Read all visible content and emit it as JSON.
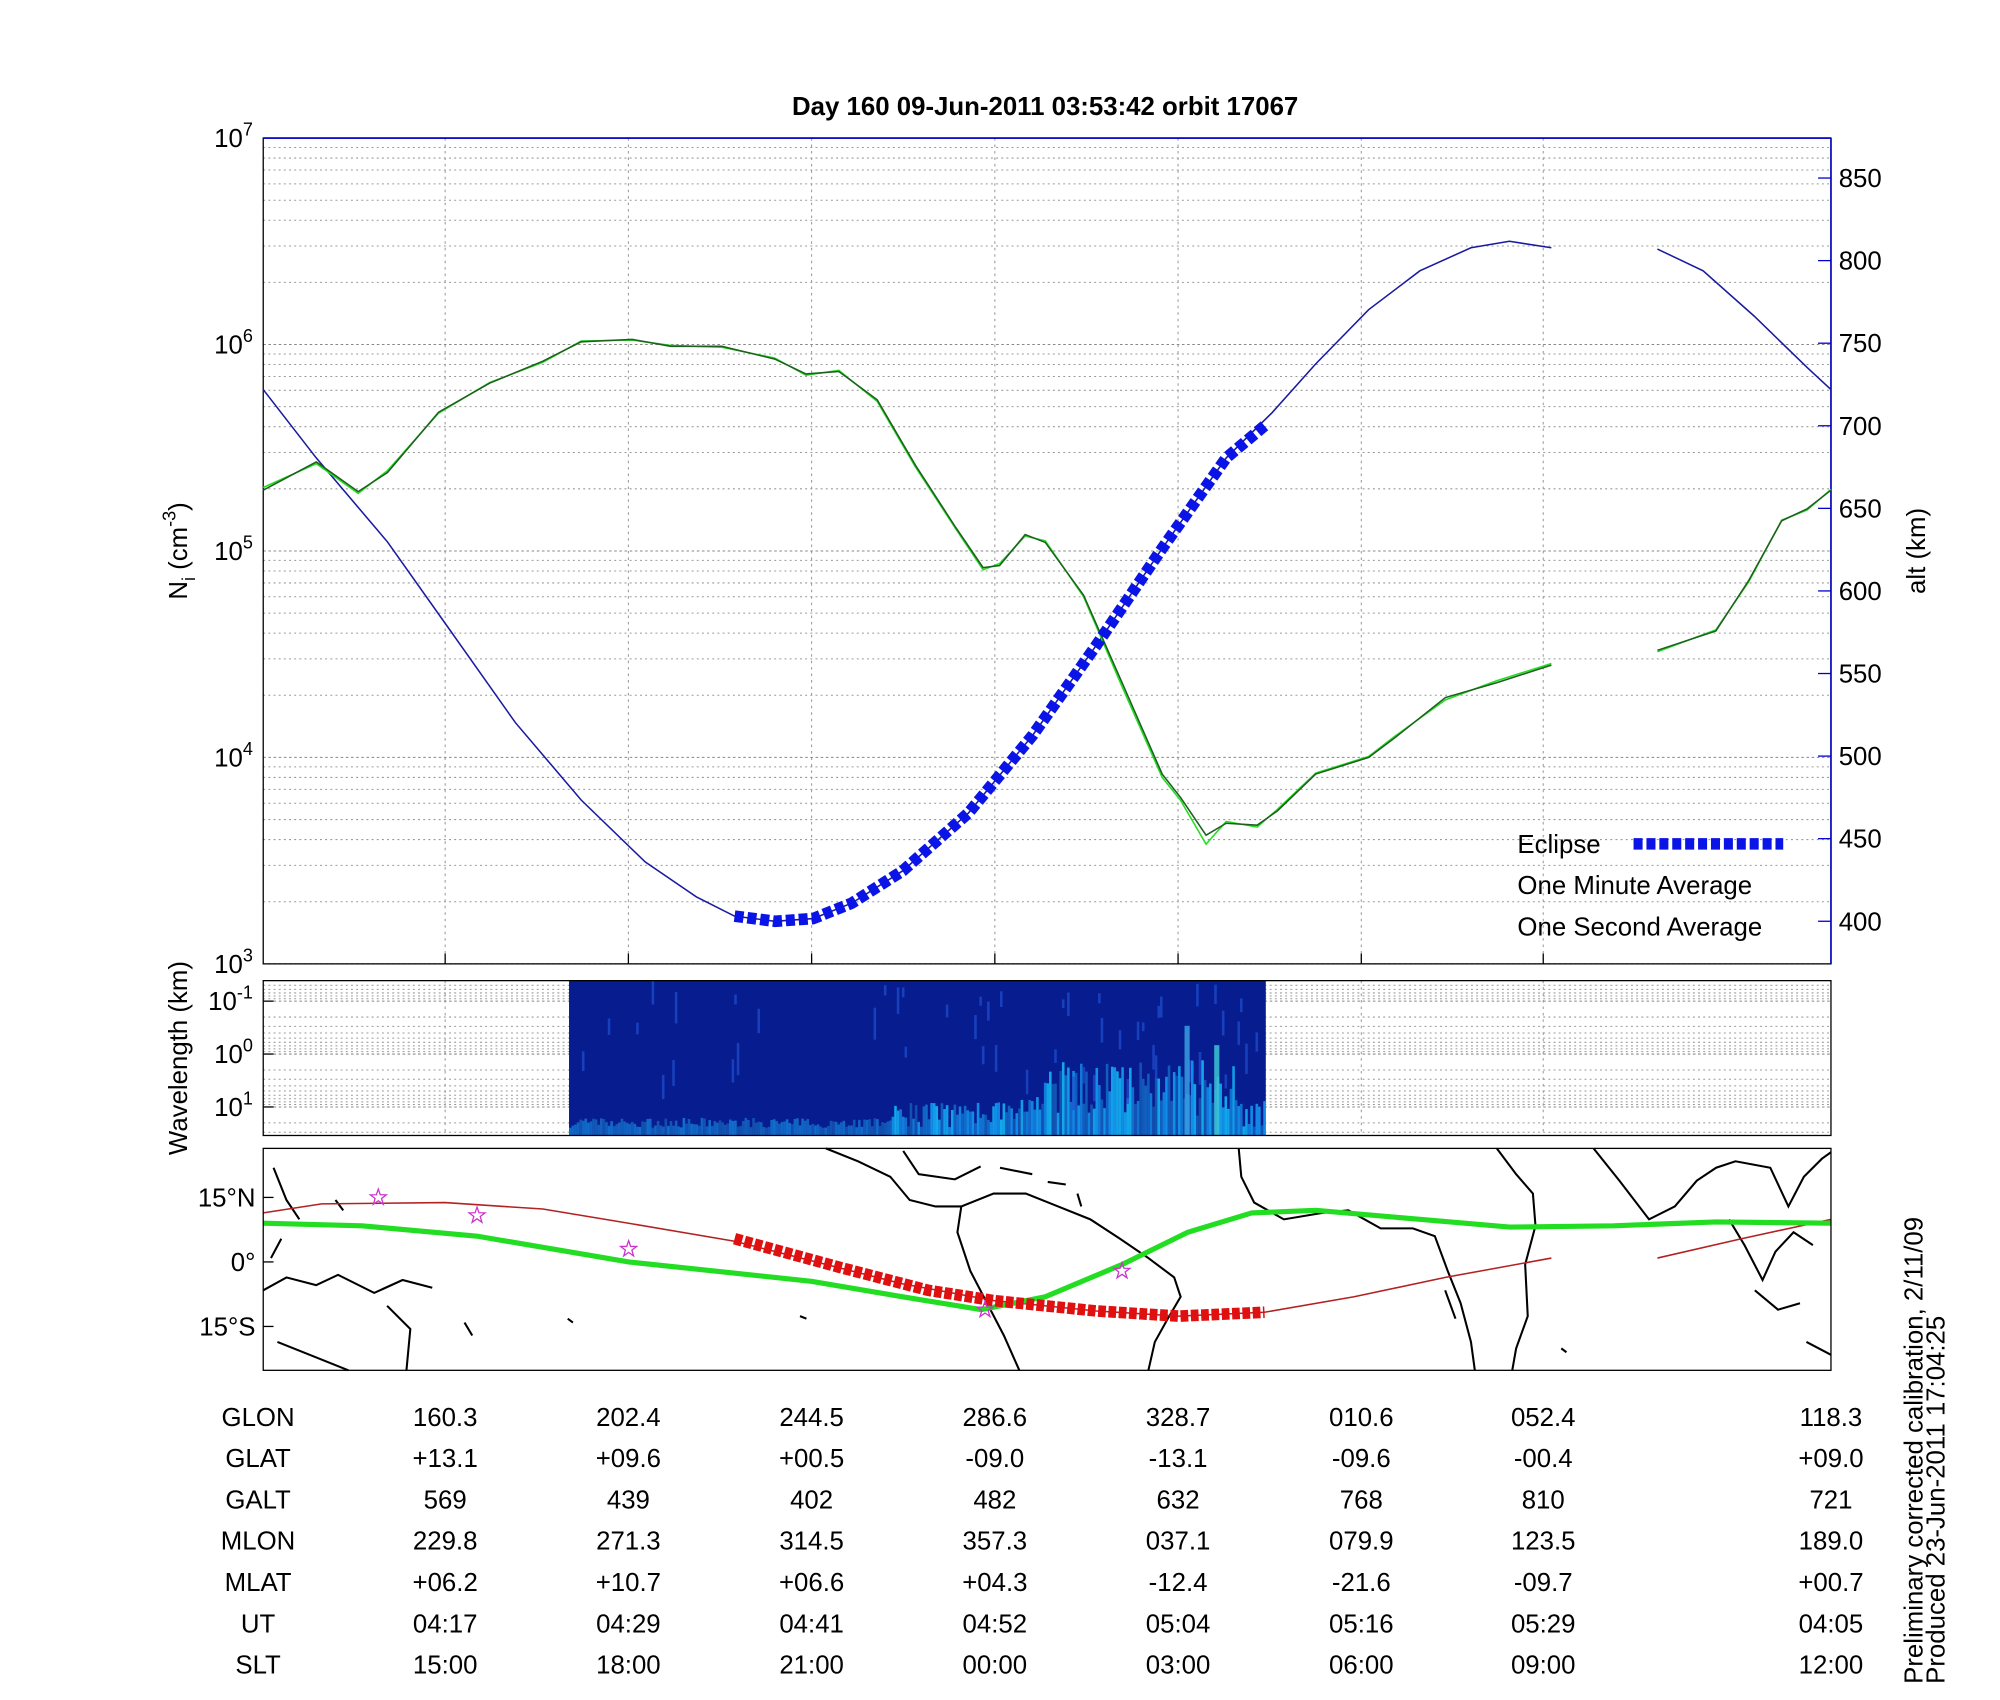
{
  "chart_data": [
    {
      "type": "line",
      "title": "Day 160  09-Jun-2011 03:53:42   orbit 17067",
      "y_label": {
        "text": "N",
        "subscript": "i",
        "unit": " (cm",
        "superscript": "-3",
        "close": ")"
      },
      "y2_label": "alt (km)",
      "y2_color": "#0000cc",
      "xlim": [
        0,
        8.58
      ],
      "ylim": [
        1000,
        10000000
      ],
      "log_y": true,
      "yticks": [
        {
          "value": 1000,
          "label": "10",
          "exponent": "3"
        },
        {
          "value": 10000,
          "label": "10",
          "exponent": "4"
        },
        {
          "value": 100000,
          "label": "10",
          "exponent": "5"
        },
        {
          "value": 1000000,
          "label": "10",
          "exponent": "6"
        },
        {
          "value": 10000000,
          "label": "10",
          "exponent": "7"
        }
      ],
      "y2lim": [
        374.2,
        874.2
      ],
      "y2ticks": [
        400,
        450,
        500,
        550,
        600,
        650,
        700,
        750,
        800,
        850
      ],
      "grid": true,
      "legend": "lower right",
      "series": [
        {
          "name": "Eclipse",
          "color": "#0a14e6",
          "style": "dashed",
          "axis": "y2",
          "x": [
            2.58,
            2.8,
            3.01,
            3.22,
            3.5,
            3.86,
            4.21,
            4.56,
            4.92,
            5.27,
            5.48
          ],
          "values": [
            403.1,
            400,
            401.6,
            410.9,
            430.5,
            465.6,
            512.5,
            567.2,
            625.8,
            680.5,
            700
          ]
        },
        {
          "name": "One Minute Average",
          "color": "#1f5f1f",
          "label_color": "#000000",
          "x": [
            0,
            0.29,
            0.52,
            0.68,
            0.96,
            1.24,
            1.53,
            1.74,
            2.02,
            2.23,
            2.51,
            2.8,
            2.97,
            3.15,
            3.36,
            3.57,
            3.79,
            3.94,
            4.03,
            4.17,
            4.28,
            4.49,
            4.7,
            4.92,
            5.02,
            5.16,
            5.27,
            5.44,
            5.55,
            5.76,
            6.05,
            6.19,
            6.47,
            6.75,
            7.05,
            null,
            7.63,
            7.95,
            8.13,
            8.31,
            8.45,
            8.58
          ],
          "values": [
            197000,
            270000,
            194000,
            240000,
            470000,
            650000,
            830000,
            1030000,
            1060000,
            980000,
            980000,
            850000,
            720000,
            740000,
            540000,
            260000,
            130000,
            83000,
            85000,
            120000,
            110000,
            61000,
            23000,
            8300,
            6400,
            4200,
            4800,
            4700,
            5500,
            8300,
            10000,
            12400,
            19500,
            23000,
            28000,
            null,
            33000,
            41000,
            72000,
            140000,
            160000,
            197000
          ]
        },
        {
          "name": "One Second Average",
          "color": "#22dd22",
          "x": [
            0,
            0.29,
            0.52,
            0.68,
            0.96,
            1.24,
            1.53,
            1.74,
            2.02,
            2.23,
            2.51,
            2.8,
            2.97,
            3.15,
            3.36,
            3.57,
            3.79,
            3.94,
            4.03,
            4.17,
            4.28,
            4.49,
            4.7,
            4.92,
            5.02,
            5.16,
            5.27,
            5.44,
            5.55,
            5.76,
            6.05,
            6.19,
            6.47,
            6.75,
            7.05,
            null,
            7.63,
            7.95,
            8.13,
            8.31,
            8.45,
            8.58
          ],
          "values": [
            203000,
            265000,
            190000,
            245000,
            465000,
            655000,
            820000,
            1040000,
            1050000,
            990000,
            970000,
            860000,
            710000,
            750000,
            530000,
            255000,
            128000,
            81000,
            87000,
            118000,
            112000,
            60000,
            22000,
            8000,
            6200,
            3800,
            4900,
            4600,
            5600,
            8400,
            10100,
            12600,
            19000,
            23500,
            28500,
            null,
            32500,
            41500,
            71000,
            141000,
            158000,
            199000
          ]
        },
        {
          "color": "#1a1aa0",
          "axis": "y2",
          "x": [
            0,
            0.29,
            0.68,
            1.03,
            1.38,
            1.74,
            2.09,
            2.37,
            2.58,
            2.8,
            3.01,
            3.22,
            3.5,
            3.86,
            4.21,
            4.56,
            4.92,
            5.27,
            5.52,
            5.76,
            6.05,
            6.33,
            6.61,
            6.82,
            7.05,
            null,
            7.63,
            7.88,
            8.16,
            8.45,
            8.58
          ],
          "values": [
            721.9,
            680.5,
            629.7,
            575,
            520.3,
            473.4,
            435.9,
            414.8,
            403.1,
            400,
            401.6,
            410.9,
            430.5,
            465.6,
            512.5,
            567.2,
            625.8,
            680.5,
            707.8,
            737.5,
            770.3,
            793.8,
            807.8,
            811.7,
            807.8,
            null,
            807,
            793.8,
            766.4,
            735.2,
            721.9
          ]
        }
      ]
    },
    {
      "type": "spectrogram",
      "y_label": "Wavelength (km)",
      "xlim": [
        0,
        8.58
      ],
      "ylim": [
        34.6,
        0.041
      ],
      "log_y": true,
      "yticks": [
        {
          "value": 0.1,
          "label": "10",
          "exponent": "-1"
        },
        {
          "value": 1,
          "label": "10",
          "exponent": "0"
        },
        {
          "value": 10,
          "label": "10",
          "exponent": "1"
        }
      ],
      "grid": true
    },
    {
      "type": "map",
      "xlim": [
        0,
        8.58
      ],
      "ylim": [
        -25.2,
        26.4
      ],
      "yticks": [
        {
          "value": 15,
          "label": "15°N"
        },
        {
          "value": 0,
          "label": "0°"
        },
        {
          "value": -15,
          "label": "15°S"
        }
      ],
      "series": [
        {
          "color": "#b22222",
          "style": "thin",
          "x": [
            0,
            0.32,
            0.996,
            1.53,
            2.0,
            2.58,
            3.5,
            4.0,
            4.56,
            5.01,
            5.48,
            5.97,
            6.47,
            7.05,
            null,
            7.63,
            8.09,
            8.58
          ],
          "values": [
            11.4,
            13.5,
            13.8,
            12.3,
            9,
            4.8,
            -5.1,
            -9,
            -11.4,
            -12.6,
            -11.7,
            -8.1,
            -3.6,
            0.9,
            null,
            0.9,
            5.4,
            9.9
          ]
        },
        {
          "color": "#22dd22",
          "style": "thick",
          "x": [
            0,
            0.54,
            1.17,
            2.0,
            3.0,
            3.5,
            3.93,
            4.28,
            4.7,
            5.06,
            5.41,
            5.76,
            6.33,
            6.82,
            7.39,
            7.95,
            8.58
          ],
          "values": [
            9,
            8.4,
            6,
            0,
            -4.5,
            -8.1,
            -11.1,
            -8.1,
            -0.6,
            6.9,
            11.4,
            12,
            9.9,
            8.1,
            8.4,
            9.3,
            9
          ]
        },
        {
          "color": "#e01010",
          "style": "dashed",
          "x": [
            2.58,
            3.15,
            3.64,
            4.0,
            4.56,
            5.01,
            5.48
          ],
          "values": [
            5.4,
            -1.2,
            -6.6,
            -9,
            -11.4,
            -12.6,
            -11.7
          ]
        },
        {
          "color": "#cc33cc",
          "style": "star",
          "x": [
            0.63,
            1.17,
            2.0,
            3.95,
            4.7
          ],
          "values": [
            15,
            10.8,
            3,
            -11.1,
            -2.1
          ]
        }
      ]
    }
  ],
  "table": {
    "rows": [
      [
        "GLON",
        "160.3",
        "202.4",
        "244.5",
        "286.6",
        "328.7",
        "010.6",
        "052.4",
        "118.3"
      ],
      [
        "GLAT",
        "+13.1",
        "+09.6",
        "+00.5",
        "-09.0",
        "-13.1",
        "-09.6",
        "-00.4",
        "+09.0"
      ],
      [
        "GALT",
        "569",
        "439",
        "402",
        "482",
        "632",
        "768",
        "810",
        "721"
      ],
      [
        "MLON",
        "229.8",
        "271.3",
        "314.5",
        "357.3",
        "037.1",
        "079.9",
        "123.5",
        "189.0"
      ],
      [
        "MLAT",
        "+06.2",
        "+10.7",
        "+06.6",
        "+04.3",
        "-12.4",
        "-21.6",
        "-09.7",
        "+00.7"
      ],
      [
        "UT",
        "04:17",
        "04:29",
        "04:41",
        "04:52",
        "05:04",
        "05:16",
        "05:29",
        "04:05"
      ],
      [
        "SLT",
        "15:00",
        "18:00",
        "21:00",
        "00:00",
        "03:00",
        "06:00",
        "09:00",
        "12:00"
      ]
    ]
  },
  "footer": [
    "Preliminary corrected calibration, 2/11/09",
    "Produced 23-Jun-2011 17:04:25"
  ]
}
